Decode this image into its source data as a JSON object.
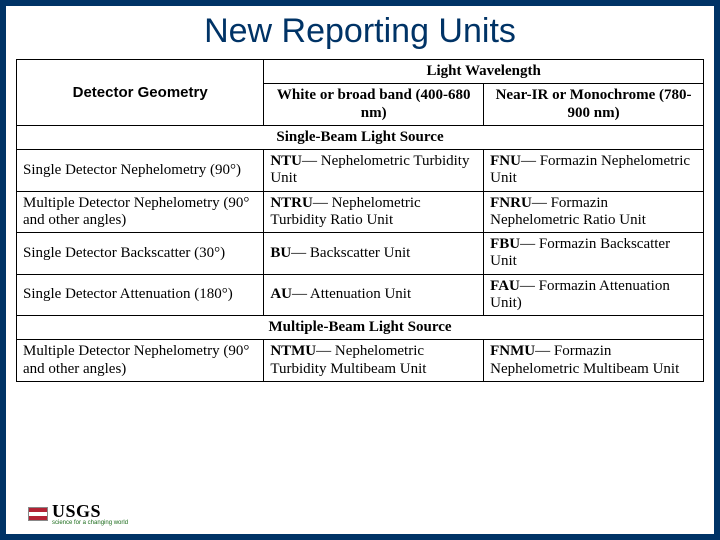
{
  "title": "New Reporting Units",
  "headers": {
    "geometry": "Detector Geometry",
    "wavelength": "Light Wavelength",
    "col_white": "White or broad band (400-680 nm)",
    "col_ir": "Near-IR or Monochrome (780-900 nm)"
  },
  "sections": {
    "single_beam": "Single-Beam Light Source",
    "multi_beam": "Multiple-Beam Light Source"
  },
  "rows_single": [
    {
      "label": "Single Detector Nephelometry (90°)",
      "white_abbr": "NTU",
      "white_desc": "— Nephelometric Turbidity Unit",
      "ir_abbr": "FNU",
      "ir_desc": "— Formazin Nephelometric Unit"
    },
    {
      "label": "Multiple Detector Nephelometry (90° and other angles)",
      "white_abbr": "NTRU",
      "white_desc": "— Nephelometric Turbidity Ratio Unit",
      "ir_abbr": "FNRU",
      "ir_desc": "— Formazin Nephelometric Ratio Unit"
    },
    {
      "label": "Single Detector Backscatter (30°)",
      "white_abbr": "BU",
      "white_desc": "— Backscatter Unit",
      "ir_abbr": "FBU",
      "ir_desc": "— Formazin Backscatter Unit"
    },
    {
      "label": "Single Detector Attenuation (180°)",
      "white_abbr": "AU",
      "white_desc": "— Attenuation Unit",
      "ir_abbr": "FAU",
      "ir_desc": "— Formazin Attenuation Unit)"
    }
  ],
  "rows_multi": [
    {
      "label": "Multiple Detector Nephelometry (90° and other angles)",
      "white_abbr": "NTMU",
      "white_desc": "— Nephelometric Turbidity Multibeam Unit",
      "ir_abbr": "FNMU",
      "ir_desc": "— Formazin Nephelometric Multibeam Unit"
    }
  ],
  "logo": {
    "text": "USGS",
    "sub": "science for a changing world"
  },
  "colors": {
    "frame": "#003366",
    "title": "#003366",
    "border": "#000000",
    "background": "#ffffff"
  }
}
